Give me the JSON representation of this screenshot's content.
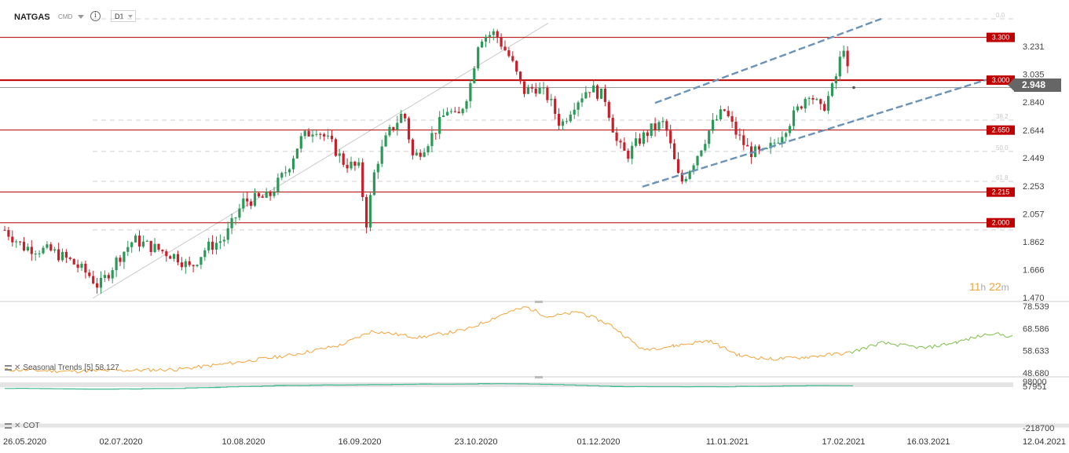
{
  "header": {
    "symbol": "NATGAS",
    "exchange": "CMD",
    "timeframe": "D1"
  },
  "timer": {
    "hours": "11",
    "h": "h",
    "minutes": "22",
    "m": "m"
  },
  "current_price": "2.948",
  "indicators": {
    "seasonal_label": "Seasonal  Trends  [5]  58.127",
    "cot_label": "COT"
  },
  "chart_data": [
    {
      "type": "candlestick",
      "title": "",
      "ylim": [
        1.47,
        3.43
      ],
      "yticks": [
        "3.231",
        "3.035",
        "2.840",
        "2.644",
        "2.449",
        "2.253",
        "2.057",
        "1.862",
        "1.666",
        "1.470"
      ],
      "ytick_values": [
        3.231,
        3.035,
        2.84,
        2.644,
        2.449,
        2.253,
        2.057,
        1.862,
        1.666,
        1.47
      ],
      "xticks": [
        "26.05.2020",
        "02.07.2020",
        "10.08.2020",
        "16.09.2020",
        "23.10.2020",
        "01.12.2020",
        "11.01.2021",
        "17.02.2021",
        "16.03.2021",
        "12.04.2021"
      ],
      "xlim": [
        "2020-05-26",
        "2021-04-12"
      ],
      "horizontal_levels": [
        {
          "value": 3.3,
          "label": "3.300"
        },
        {
          "value": 3.0,
          "label": "3.000"
        },
        {
          "value": 2.65,
          "label": "2.650"
        },
        {
          "value": 2.215,
          "label": "2.215"
        },
        {
          "value": 2.0,
          "label": "2.000"
        }
      ],
      "fib_level_labels": [
        "0.0",
        "38.2",
        "50.0",
        "61.8",
        "100.0"
      ],
      "fib_levels": [
        3.43,
        2.72,
        2.5,
        2.29,
        1.95
      ],
      "current_price": 2.948,
      "channel": {
        "upper": [
          [
            "2020-12-19",
            2.84
          ],
          [
            "2021-03-01",
            3.43
          ]
        ],
        "lower": [
          [
            "2020-12-15",
            2.253
          ],
          [
            "2021-04-06",
            3.02
          ]
        ]
      },
      "trendline": [
        [
          "2020-06-23",
          1.47
        ],
        [
          "2020-11-15",
          3.4
        ]
      ],
      "ohlc_path": [
        [
          "2020-05-26",
          1.95
        ],
        [
          "2020-06-01",
          1.83
        ],
        [
          "2020-06-10",
          1.8
        ],
        [
          "2020-06-16",
          1.73
        ],
        [
          "2020-06-22",
          1.63
        ],
        [
          "2020-06-25",
          1.55
        ],
        [
          "2020-07-01",
          1.75
        ],
        [
          "2020-07-06",
          1.88
        ],
        [
          "2020-07-13",
          1.82
        ],
        [
          "2020-07-20",
          1.76
        ],
        [
          "2020-07-24",
          1.68
        ],
        [
          "2020-07-29",
          1.82
        ],
        [
          "2020-08-04",
          1.89
        ],
        [
          "2020-08-10",
          2.15
        ],
        [
          "2020-08-18",
          2.18
        ],
        [
          "2020-08-24",
          2.38
        ],
        [
          "2020-08-28",
          2.58
        ],
        [
          "2020-09-02",
          2.67
        ],
        [
          "2020-09-07",
          2.55
        ],
        [
          "2020-09-11",
          2.42
        ],
        [
          "2020-09-16",
          2.38
        ],
        [
          "2020-09-18",
          1.98
        ],
        [
          "2020-09-21",
          2.4
        ],
        [
          "2020-09-25",
          2.62
        ],
        [
          "2020-09-30",
          2.78
        ],
        [
          "2020-10-03",
          2.45
        ],
        [
          "2020-10-07",
          2.55
        ],
        [
          "2020-10-11",
          2.68
        ],
        [
          "2020-10-14",
          2.8
        ],
        [
          "2020-10-17",
          2.72
        ],
        [
          "2020-10-21",
          2.95
        ],
        [
          "2020-10-24",
          3.3
        ],
        [
          "2020-10-29",
          3.33
        ],
        [
          "2020-11-03",
          3.15
        ],
        [
          "2020-11-07",
          2.92
        ],
        [
          "2020-11-11",
          2.95
        ],
        [
          "2020-11-15",
          2.88
        ],
        [
          "2020-11-19",
          2.68
        ],
        [
          "2020-11-23",
          2.83
        ],
        [
          "2020-11-28",
          2.95
        ],
        [
          "2020-12-03",
          2.88
        ],
        [
          "2020-12-07",
          2.55
        ],
        [
          "2020-12-10",
          2.47
        ],
        [
          "2020-12-14",
          2.58
        ],
        [
          "2020-12-18",
          2.66
        ],
        [
          "2020-12-22",
          2.7
        ],
        [
          "2020-12-27",
          2.27
        ],
        [
          "2021-01-01",
          2.46
        ],
        [
          "2021-01-06",
          2.68
        ],
        [
          "2021-01-10",
          2.79
        ],
        [
          "2021-01-14",
          2.62
        ],
        [
          "2021-01-18",
          2.5
        ],
        [
          "2021-01-23",
          2.48
        ],
        [
          "2021-01-28",
          2.62
        ],
        [
          "2021-02-02",
          2.78
        ],
        [
          "2021-02-06",
          2.92
        ],
        [
          "2021-02-10",
          2.78
        ],
        [
          "2021-02-14",
          2.97
        ],
        [
          "2021-02-17",
          3.25
        ],
        [
          "2021-02-19",
          2.95
        ]
      ]
    },
    {
      "type": "line",
      "title": "",
      "series": [
        {
          "name": "Seasonal Trends [5]",
          "last_value": 58.127
        }
      ],
      "ylim": [
        48.68,
        78.539
      ],
      "yticks": [
        "78.539",
        "68.586",
        "58.633",
        "48.680"
      ],
      "ytick_values": [
        78.539,
        68.586,
        58.633,
        48.68
      ],
      "history_color": "#f3a33a",
      "projection_color": "#7cc04a",
      "path": [
        [
          "2020-05-26",
          50.5
        ],
        [
          "2020-06-15",
          49.8
        ],
        [
          "2020-07-01",
          50.1
        ],
        [
          "2020-07-20",
          50.6
        ],
        [
          "2020-08-05",
          53.2
        ],
        [
          "2020-08-25",
          57.0
        ],
        [
          "2020-09-10",
          61.5
        ],
        [
          "2020-09-20",
          67.8
        ],
        [
          "2020-10-05",
          64.9
        ],
        [
          "2020-10-20",
          68.4
        ],
        [
          "2020-11-01",
          75.6
        ],
        [
          "2020-11-08",
          78.5
        ],
        [
          "2020-11-15",
          74.2
        ],
        [
          "2020-11-25",
          76.3
        ],
        [
          "2020-12-05",
          70.4
        ],
        [
          "2020-12-15",
          59.5
        ],
        [
          "2020-12-25",
          61.1
        ],
        [
          "2021-01-05",
          63.5
        ],
        [
          "2021-01-15",
          56.8
        ],
        [
          "2021-01-25",
          55.2
        ],
        [
          "2021-02-05",
          56.1
        ],
        [
          "2021-02-19",
          58.1
        ],
        [
          "2021-03-01",
          62.5
        ],
        [
          "2021-03-15",
          60.1
        ],
        [
          "2021-03-25",
          62.8
        ],
        [
          "2021-04-05",
          66.8
        ],
        [
          "2021-04-12",
          65.2
        ]
      ]
    },
    {
      "type": "line",
      "title": "",
      "series": [
        {
          "name": "COT"
        }
      ],
      "ylim": [
        -218700,
        98000
      ],
      "yticks": [
        "98000",
        "57951",
        "-218700"
      ],
      "ytick_values": [
        98000,
        57951,
        -218700
      ],
      "color": "#3fb98f",
      "path": [
        [
          "2020-05-26",
          38000
        ],
        [
          "2020-06-20",
          32000
        ],
        [
          "2020-07-15",
          36000
        ],
        [
          "2020-08-01",
          45000
        ],
        [
          "2020-08-20",
          58000
        ],
        [
          "2020-09-15",
          63000
        ],
        [
          "2020-10-05",
          68000
        ],
        [
          "2020-10-25",
          71000
        ],
        [
          "2020-11-05",
          70000
        ],
        [
          "2020-11-20",
          63000
        ],
        [
          "2020-12-05",
          51000
        ],
        [
          "2020-12-20",
          49000
        ],
        [
          "2021-01-10",
          50000
        ],
        [
          "2021-01-25",
          53000
        ],
        [
          "2021-02-05",
          57000
        ],
        [
          "2021-02-19",
          58000
        ]
      ]
    }
  ]
}
